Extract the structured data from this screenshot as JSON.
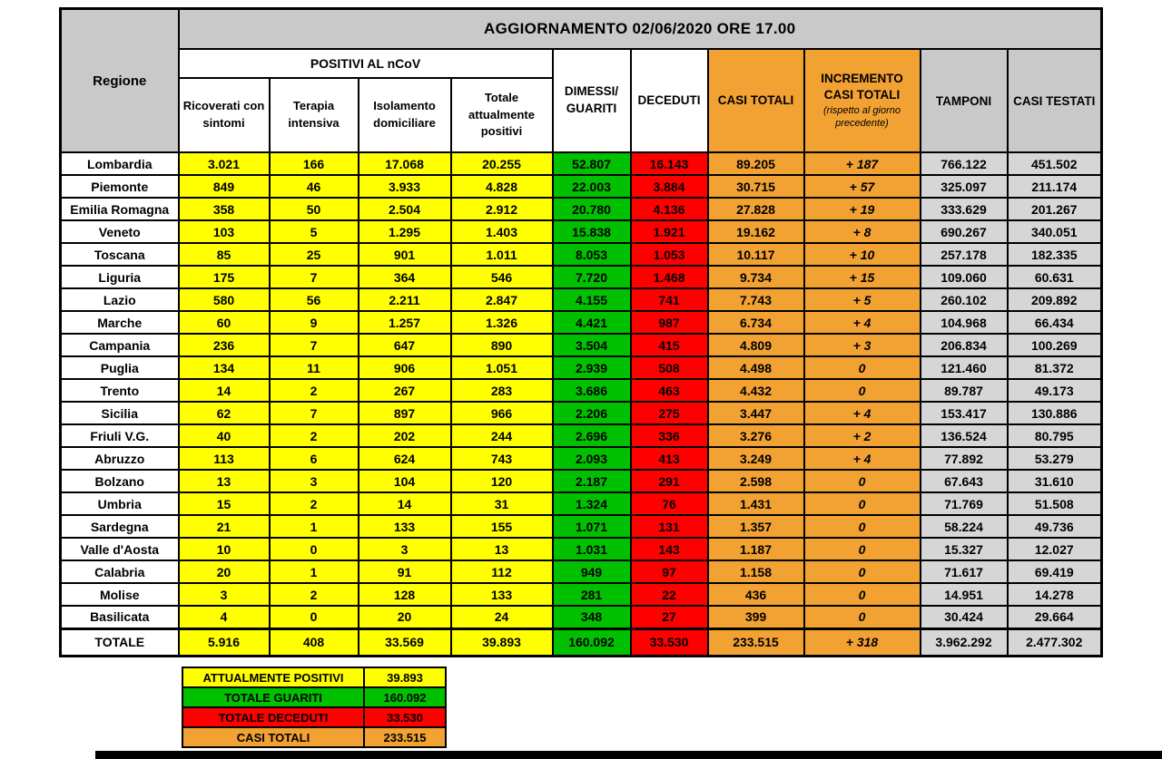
{
  "header": {
    "title": "AGGIORNAMENTO 02/06/2020 ORE 17.00",
    "regione": "Regione",
    "positivi_group": "POSITIVI AL nCoV",
    "ricoverati": "Ricoverati con sintomi",
    "terapia": "Terapia intensiva",
    "isolamento": "Isolamento domiciliare",
    "totale_positivi": "Totale attualmente positivi",
    "dimessi": "DIMESSI/ GUARITI",
    "deceduti": "DECEDUTI",
    "casi_totali": "CASI TOTALI",
    "incremento": "INCREMENTO CASI  TOTALI",
    "incremento_note": "(rispetto al giorno precedente)",
    "tamponi": "TAMPONI",
    "casi_testati": "CASI TESTATI"
  },
  "colors": {
    "yellow": "#ffff00",
    "green": "#00c000",
    "red": "#ff0000",
    "orange": "#f2a233",
    "gray_header": "#c9c9c9",
    "gray_cell": "#d6d6d6"
  },
  "chart_data": {
    "type": "table",
    "title": "AGGIORNAMENTO 02/06/2020 ORE 17.00",
    "columns": [
      "Regione",
      "Ricoverati con sintomi",
      "Terapia intensiva",
      "Isolamento domiciliare",
      "Totale attualmente positivi",
      "DIMESSI/GUARITI",
      "DECEDUTI",
      "CASI TOTALI",
      "INCREMENTO CASI TOTALI (rispetto al giorno precedente)",
      "TAMPONI",
      "CASI TESTATI"
    ],
    "rows": [
      {
        "region": "Lombardia",
        "values": [
          "3.021",
          "166",
          "17.068",
          "20.255",
          "52.807",
          "16.143",
          "89.205",
          "+ 187",
          "766.122",
          "451.502"
        ]
      },
      {
        "region": "Piemonte",
        "values": [
          "849",
          "46",
          "3.933",
          "4.828",
          "22.003",
          "3.884",
          "30.715",
          "+ 57",
          "325.097",
          "211.174"
        ]
      },
      {
        "region": "Emilia Romagna",
        "values": [
          "358",
          "50",
          "2.504",
          "2.912",
          "20.780",
          "4.136",
          "27.828",
          "+ 19",
          "333.629",
          "201.267"
        ]
      },
      {
        "region": "Veneto",
        "values": [
          "103",
          "5",
          "1.295",
          "1.403",
          "15.838",
          "1.921",
          "19.162",
          "+ 8",
          "690.267",
          "340.051"
        ]
      },
      {
        "region": "Toscana",
        "values": [
          "85",
          "25",
          "901",
          "1.011",
          "8.053",
          "1.053",
          "10.117",
          "+ 10",
          "257.178",
          "182.335"
        ]
      },
      {
        "region": "Liguria",
        "values": [
          "175",
          "7",
          "364",
          "546",
          "7.720",
          "1.468",
          "9.734",
          "+ 15",
          "109.060",
          "60.631"
        ]
      },
      {
        "region": "Lazio",
        "values": [
          "580",
          "56",
          "2.211",
          "2.847",
          "4.155",
          "741",
          "7.743",
          "+ 5",
          "260.102",
          "209.892"
        ]
      },
      {
        "region": "Marche",
        "values": [
          "60",
          "9",
          "1.257",
          "1.326",
          "4.421",
          "987",
          "6.734",
          "+ 4",
          "104.968",
          "66.434"
        ]
      },
      {
        "region": "Campania",
        "values": [
          "236",
          "7",
          "647",
          "890",
          "3.504",
          "415",
          "4.809",
          "+ 3",
          "206.834",
          "100.269"
        ]
      },
      {
        "region": "Puglia",
        "values": [
          "134",
          "11",
          "906",
          "1.051",
          "2.939",
          "508",
          "4.498",
          "0",
          "121.460",
          "81.372"
        ]
      },
      {
        "region": "Trento",
        "values": [
          "14",
          "2",
          "267",
          "283",
          "3.686",
          "463",
          "4.432",
          "0",
          "89.787",
          "49.173"
        ]
      },
      {
        "region": "Sicilia",
        "values": [
          "62",
          "7",
          "897",
          "966",
          "2.206",
          "275",
          "3.447",
          "+ 4",
          "153.417",
          "130.886"
        ]
      },
      {
        "region": "Friuli V.G.",
        "values": [
          "40",
          "2",
          "202",
          "244",
          "2.696",
          "336",
          "3.276",
          "+ 2",
          "136.524",
          "80.795"
        ]
      },
      {
        "region": "Abruzzo",
        "values": [
          "113",
          "6",
          "624",
          "743",
          "2.093",
          "413",
          "3.249",
          "+ 4",
          "77.892",
          "53.279"
        ]
      },
      {
        "region": "Bolzano",
        "values": [
          "13",
          "3",
          "104",
          "120",
          "2.187",
          "291",
          "2.598",
          "0",
          "67.643",
          "31.610"
        ]
      },
      {
        "region": "Umbria",
        "values": [
          "15",
          "2",
          "14",
          "31",
          "1.324",
          "76",
          "1.431",
          "0",
          "71.769",
          "51.508"
        ]
      },
      {
        "region": "Sardegna",
        "values": [
          "21",
          "1",
          "133",
          "155",
          "1.071",
          "131",
          "1.357",
          "0",
          "58.224",
          "49.736"
        ]
      },
      {
        "region": "Valle d'Aosta",
        "values": [
          "10",
          "0",
          "3",
          "13",
          "1.031",
          "143",
          "1.187",
          "0",
          "15.327",
          "12.027"
        ]
      },
      {
        "region": "Calabria",
        "values": [
          "20",
          "1",
          "91",
          "112",
          "949",
          "97",
          "1.158",
          "0",
          "71.617",
          "69.419"
        ]
      },
      {
        "region": "Molise",
        "values": [
          "3",
          "2",
          "128",
          "133",
          "281",
          "22",
          "436",
          "0",
          "14.951",
          "14.278"
        ]
      },
      {
        "region": "Basilicata",
        "values": [
          "4",
          "0",
          "20",
          "24",
          "348",
          "27",
          "399",
          "0",
          "30.424",
          "29.664"
        ]
      }
    ],
    "total": {
      "label": "TOTALE",
      "values": [
        "5.916",
        "408",
        "33.569",
        "39.893",
        "160.092",
        "33.530",
        "233.515",
        "+ 318",
        "3.962.292",
        "2.477.302"
      ]
    }
  },
  "legend": [
    {
      "label": "ATTUALMENTE POSITIVI",
      "value": "39.893",
      "color": "#ffff00"
    },
    {
      "label": "TOTALE GUARITI",
      "value": "160.092",
      "color": "#00c000"
    },
    {
      "label": "TOTALE DECEDUTI",
      "value": "33.530",
      "color": "#ff0000"
    },
    {
      "label": "CASI TOTALI",
      "value": "233.515",
      "color": "#f2a233"
    }
  ]
}
